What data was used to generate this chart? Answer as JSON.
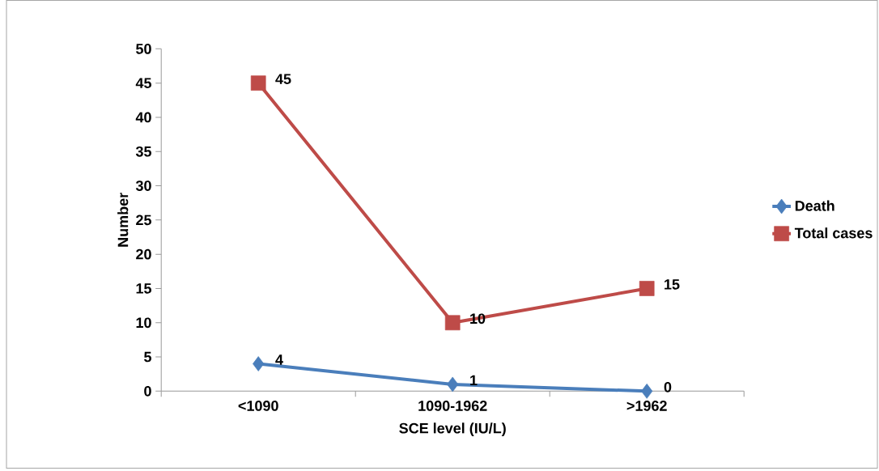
{
  "chart_data": {
    "type": "line",
    "xlabel": "SCE level (IU/L)",
    "ylabel": "Number",
    "categories": [
      "<1090",
      "1090-1962",
      ">1962"
    ],
    "series": [
      {
        "name": "Death",
        "color": "#4a7ebb",
        "marker": "diamond",
        "values": [
          4,
          1,
          0
        ]
      },
      {
        "name": "Total cases",
        "color": "#be4b48",
        "marker": "square",
        "values": [
          45,
          10,
          15
        ]
      }
    ],
    "ylim": [
      0,
      50
    ],
    "yticks": [
      0,
      5,
      10,
      15,
      20,
      25,
      30,
      35,
      40,
      45,
      50
    ],
    "grid": false,
    "legend": "right",
    "data_labels": true,
    "line_style": "solid"
  }
}
